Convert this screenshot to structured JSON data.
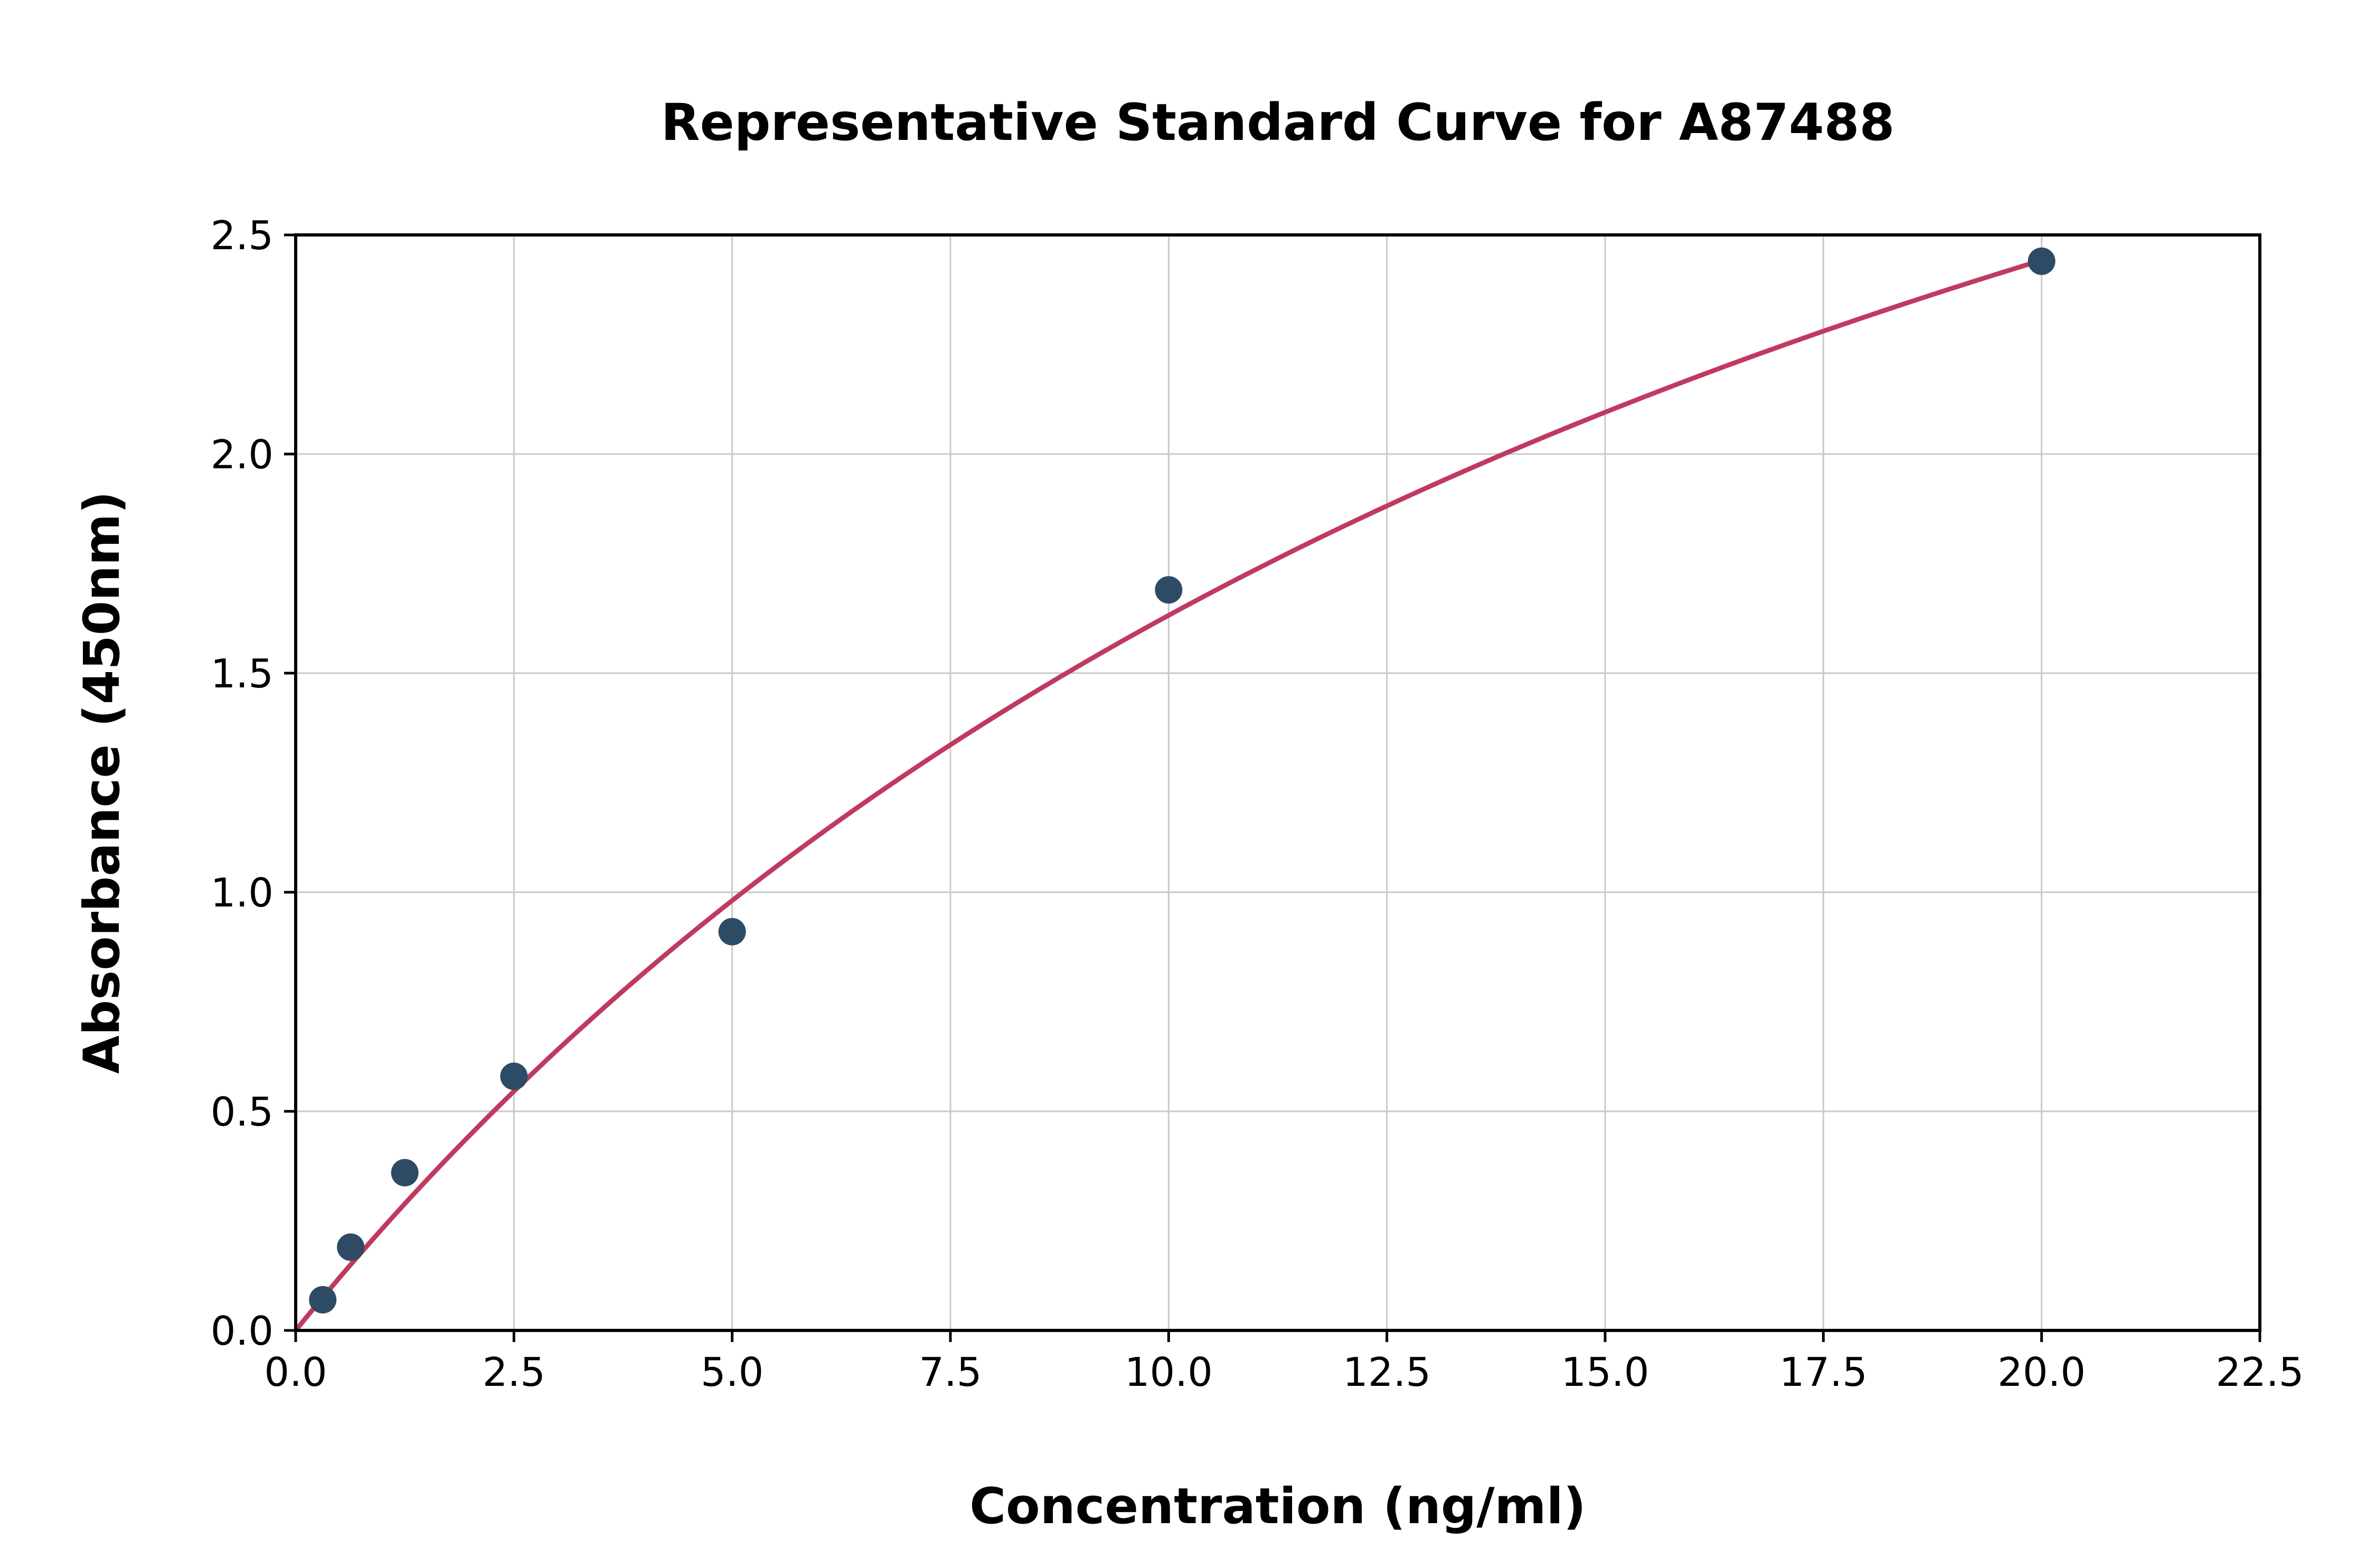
{
  "chart_data": {
    "type": "scatter",
    "title": "Representative Standard Curve for A87488",
    "xlabel": "Concentration (ng/ml)",
    "ylabel": "Absorbance (450nm)",
    "xlim": [
      0,
      22.5
    ],
    "ylim": [
      0,
      2.5
    ],
    "x_ticks": [
      0.0,
      2.5,
      5.0,
      7.5,
      10.0,
      12.5,
      15.0,
      17.5,
      20.0,
      22.5
    ],
    "x_tick_labels": [
      "0.0",
      "2.5",
      "5.0",
      "7.5",
      "10.0",
      "12.5",
      "15.0",
      "17.5",
      "20.0",
      "22.5"
    ],
    "y_ticks": [
      0.0,
      0.5,
      1.0,
      1.5,
      2.0,
      2.5
    ],
    "y_tick_labels": [
      "0.0",
      "0.5",
      "1.0",
      "1.5",
      "2.0",
      "2.5"
    ],
    "grid": true,
    "legend": "none",
    "points": [
      {
        "x": 0.31,
        "y": 0.07
      },
      {
        "x": 0.63,
        "y": 0.19
      },
      {
        "x": 1.25,
        "y": 0.36
      },
      {
        "x": 2.5,
        "y": 0.58
      },
      {
        "x": 5.0,
        "y": 0.91
      },
      {
        "x": 10.0,
        "y": 1.69
      },
      {
        "x": 20.0,
        "y": 2.44
      }
    ],
    "fit_curve": {
      "model": "y = a*x/(b+x)",
      "a": 4.85,
      "b": 19.72,
      "x_start": 0,
      "x_end": 20
    },
    "colors": {
      "points": "#2e4b66",
      "curve": "#c03a60",
      "grid": "#c9c9c9",
      "axes": "#000000",
      "text": "#000000",
      "background": "#ffffff"
    }
  }
}
